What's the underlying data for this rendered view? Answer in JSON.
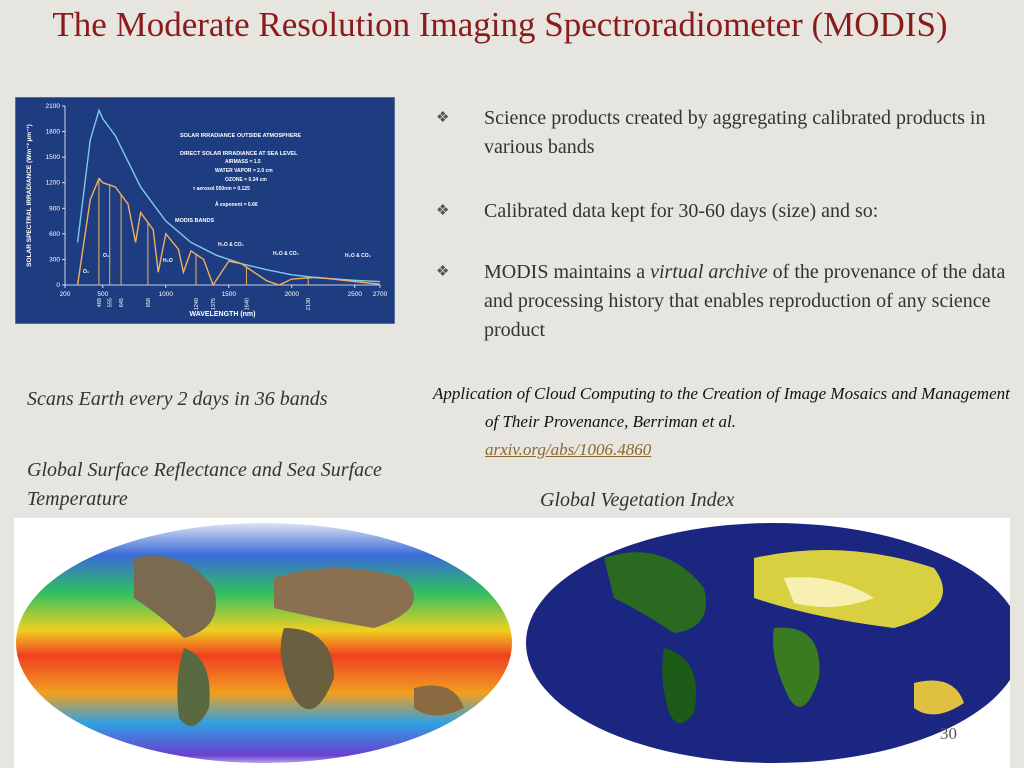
{
  "title": "The Moderate Resolution Imaging Spectroradiometer (MODIS)",
  "bullets": [
    [
      {
        "text": "Science products created by aggregating calibrated products in various bands"
      }
    ],
    [
      {
        "text": "Calibrated data kept for 30-60 days (size) and so:"
      }
    ],
    [
      {
        "text": "MODIS maintains a "
      },
      {
        "text": "virtual archive",
        "italic": true
      },
      {
        "text": " of the provenance of the data and processing history that enables reproduction of any science product"
      }
    ]
  ],
  "citation": {
    "text": "Application of Cloud Computing to the Creation of Image Mosaics and Management of Their Provenance, Berriman et al.",
    "link": "arxiv.org/abs/1006.4860"
  },
  "captions": {
    "scan": "Scans Earth every 2 days in 36 bands",
    "left_map": "Global Surface Reflectance and Sea Surface Temperature",
    "right_map": "Global Vegetation Index"
  },
  "page_number": "30",
  "chart_data": {
    "type": "line",
    "x_label": "WAVELENGTH (nm)",
    "y_label": "SOLAR SPECTRAL IRRADIANCE (Wm⁻² µm⁻¹)",
    "xlim": [
      200,
      2700
    ],
    "ylim": [
      0,
      2100
    ],
    "xticks": [
      200,
      500,
      1000,
      1500,
      2000,
      2500,
      2700
    ],
    "yticks": [
      0,
      300,
      600,
      900,
      1200,
      1500,
      1800,
      2100
    ],
    "band_ticks": [
      469,
      555,
      645,
      858,
      1240,
      1375,
      1640,
      2130
    ],
    "annotations": [
      "SOLAR IRRADIANCE OUTSIDE ATMOSPHERE",
      "DIRECT SOLAR IRRADIANCE AT SEA LEVEL",
      "AIRMASS = 1.5",
      "WATER VAPOR = 2.0 cm",
      "OZONE = 0.34 cm",
      "τ aerosol 550nm = 0.125",
      "Å exponent = 0.66",
      "MODIS BANDS",
      "H₂O & CO₂",
      "H₂O & CO₂",
      "H₂O & CO₂",
      "H₂O",
      "O₂",
      "O₃"
    ],
    "series": [
      {
        "name": "SOLAR IRRADIANCE OUTSIDE ATMOSPHERE",
        "color": "#7fc8f0",
        "x": [
          300,
          400,
          470,
          500,
          600,
          700,
          800,
          900,
          1000,
          1200,
          1400,
          1600,
          1800,
          2000,
          2200,
          2500,
          2700
        ],
        "values": [
          500,
          1700,
          2050,
          1950,
          1750,
          1450,
          1150,
          950,
          750,
          500,
          350,
          250,
          180,
          120,
          85,
          55,
          40
        ]
      },
      {
        "name": "DIRECT SOLAR IRRADIANCE AT SEA LEVEL",
        "color": "#f0b060",
        "x": [
          300,
          400,
          470,
          500,
          600,
          700,
          760,
          800,
          900,
          940,
          1000,
          1100,
          1140,
          1200,
          1300,
          1375,
          1500,
          1600,
          1800,
          1900,
          2000,
          2200,
          2500,
          2700
        ],
        "values": [
          0,
          1000,
          1250,
          1200,
          1150,
          950,
          500,
          850,
          650,
          150,
          600,
          420,
          150,
          400,
          300,
          0,
          280,
          250,
          50,
          0,
          70,
          90,
          40,
          10
        ]
      }
    ]
  }
}
